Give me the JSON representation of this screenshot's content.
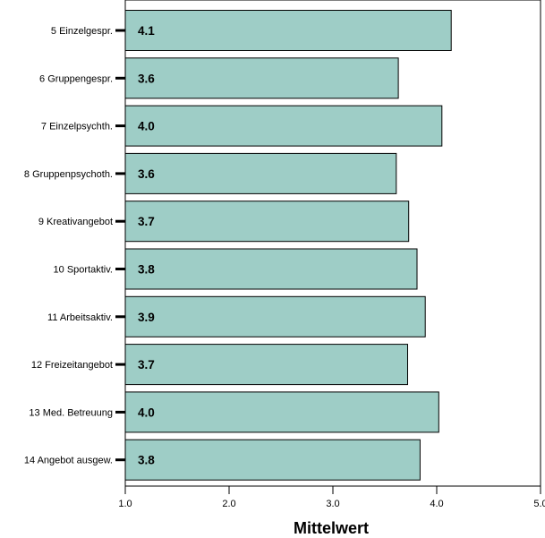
{
  "colors": {
    "bar_fill": "#9ecdc6",
    "bar_stroke": "#000000",
    "frame": "#000000"
  },
  "chart_data": {
    "type": "bar",
    "orientation": "horizontal",
    "categories": [
      "5 Einzelgespr.",
      "6 Gruppengespr.",
      "7 Einzelpsychth.",
      "8 Gruppenpsychoth.",
      "9 Kreativangebot",
      "10 Sportaktiv.",
      "11 Arbeitsaktiv.",
      "12 Freizeitangebot",
      "13 Med. Betreuung",
      "14 Angebot ausgew."
    ],
    "values": [
      4.14,
      3.63,
      4.05,
      3.61,
      3.73,
      3.81,
      3.89,
      3.72,
      4.02,
      3.84
    ],
    "value_labels": [
      "4.1",
      "3.6",
      "4.0",
      "3.6",
      "3.7",
      "3.8",
      "3.9",
      "3.7",
      "4.0",
      "3.8"
    ],
    "xlabel": "Mittelwert",
    "xlim": [
      1.0,
      5.0
    ],
    "xticks": [
      "1.0",
      "2.0",
      "3.0",
      "4.0",
      "5.0"
    ],
    "grid": false,
    "legend": "none"
  }
}
